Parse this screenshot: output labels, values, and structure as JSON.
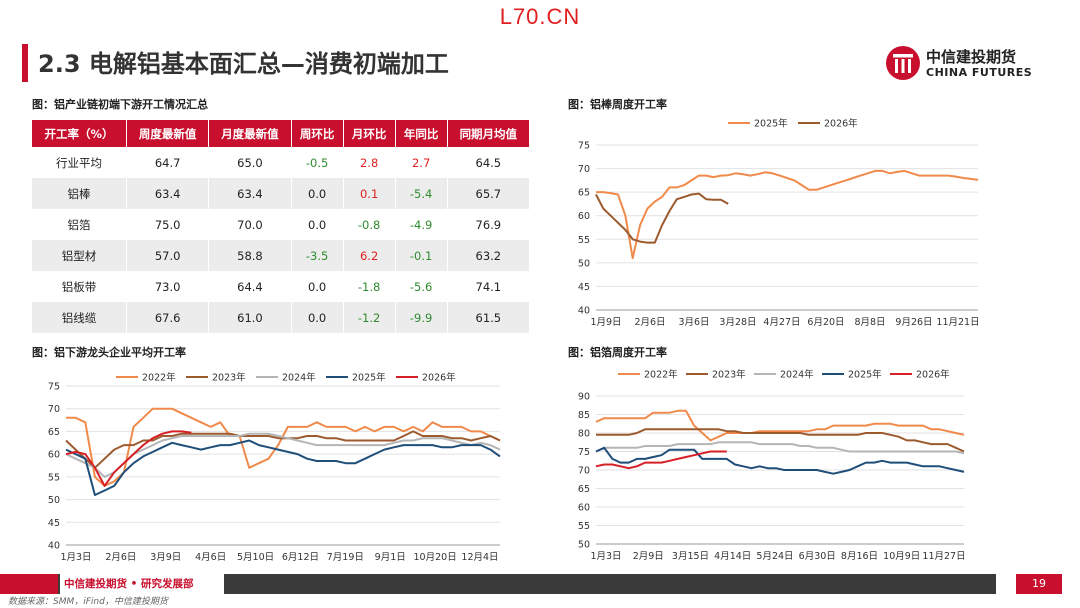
{
  "watermark": "L70.CN",
  "header": {
    "title": "2.3 电解铝基本面汇总—消费初端加工"
  },
  "logo": {
    "cn": "中信建投期货",
    "en": "CHINA FUTURES"
  },
  "table": {
    "caption": "图：铝产业链初端下游开工情况汇总",
    "headers": [
      "开工率（%）",
      "周度最新值",
      "月度最新值",
      "周环比",
      "月环比",
      "年同比",
      "同期月均值"
    ],
    "rows": [
      [
        "行业平均",
        "64.7",
        "65.0",
        "-0.5",
        "2.8",
        "2.7",
        "64.5"
      ],
      [
        "铝棒",
        "63.4",
        "63.4",
        "0.0",
        "0.1",
        "-5.4",
        "65.7"
      ],
      [
        "铝箔",
        "75.0",
        "70.0",
        "0.0",
        "-0.8",
        "-4.9",
        "76.9"
      ],
      [
        "铝型材",
        "57.0",
        "58.8",
        "-3.5",
        "6.2",
        "-0.1",
        "63.2"
      ],
      [
        "铝板带",
        "73.0",
        "64.4",
        "0.0",
        "-1.8",
        "-5.6",
        "74.1"
      ],
      [
        "铝线缆",
        "67.6",
        "61.0",
        "0.0",
        "-1.2",
        "-9.9",
        "61.5"
      ]
    ]
  },
  "colors": {
    "2022": "#f08a4b",
    "2023": "#9c5a2e",
    "2024": "#b5b5b5",
    "2025": "#1f4e79",
    "2026": "#d62027",
    "2025b": "#f08a4b",
    "2026b": "#9c5a2e",
    "accent": "#c8102e"
  },
  "chart_data": [
    {
      "id": "rod",
      "type": "line",
      "title": "图：铝棒周度开工率",
      "ylim": [
        40,
        75
      ],
      "yticks": [
        40,
        45,
        50,
        55,
        60,
        65,
        70,
        75
      ],
      "xticklabels": [
        "1月9日",
        "2月6日",
        "3月6日",
        "3月28日",
        "4月27日",
        "6月20日",
        "8月8日",
        "9月26日",
        "11月21日"
      ],
      "series": [
        {
          "name": "2025年",
          "color": "#f08a4b",
          "values": [
            65,
            65,
            64.8,
            64.5,
            60,
            51,
            58,
            61.5,
            63,
            64,
            66,
            66,
            66.5,
            67.5,
            68.5,
            68.5,
            68.2,
            68.5,
            68.6,
            69,
            68.8,
            68.5,
            68.8,
            69.2,
            69,
            68.5,
            68,
            67.5,
            66.5,
            65.5,
            65.5,
            66,
            66.5,
            67,
            67.5,
            68,
            68.5,
            69,
            69.5,
            69.5,
            69,
            69.3,
            69.5,
            69,
            68.5,
            68.5,
            68.5,
            68.5,
            68.5,
            68.3,
            68,
            67.8,
            67.6
          ]
        },
        {
          "name": "2026年",
          "color": "#9c5a2e",
          "values": [
            64.5,
            61.5,
            60,
            58.5,
            57,
            55,
            54.5,
            54.3,
            54.3,
            58,
            61,
            63.5,
            64,
            64.5,
            64.7,
            63.5,
            63.4,
            63.4,
            62.5
          ]
        }
      ]
    },
    {
      "id": "leading",
      "type": "line",
      "title": "图：铝下游龙头企业平均开工率",
      "ylim": [
        40,
        75
      ],
      "yticks": [
        40,
        45,
        50,
        55,
        60,
        65,
        70,
        75
      ],
      "xticklabels": [
        "1月3日",
        "2月6日",
        "3月9日",
        "4月6日",
        "5月10日",
        "6月12日",
        "7月19日",
        "9月1日",
        "10月20日",
        "12月4日"
      ],
      "series": [
        {
          "name": "2022年",
          "color": "#f08a4b",
          "values": [
            68,
            68,
            67,
            55,
            53,
            54,
            56,
            66,
            68,
            70,
            70,
            70,
            69,
            68,
            67,
            66,
            67,
            64,
            64,
            57,
            58,
            59,
            62,
            66,
            66,
            66,
            67,
            66,
            66,
            66,
            65,
            66,
            65,
            66,
            66,
            65,
            66,
            65,
            67,
            66,
            66,
            66,
            65,
            65,
            64,
            63
          ]
        },
        {
          "name": "2023年",
          "color": "#9c5a2e",
          "values": [
            63,
            61,
            59,
            57,
            59,
            61,
            62,
            62,
            63,
            63,
            64,
            64,
            64.5,
            64.5,
            64.5,
            64.5,
            64.5,
            64.5,
            64,
            64,
            64,
            64,
            63.5,
            63.5,
            63.5,
            64,
            64,
            63.5,
            63.5,
            63,
            63,
            63,
            63,
            63,
            63,
            64,
            65,
            64,
            64,
            64,
            63.5,
            63.5,
            63,
            63.5,
            64,
            63
          ]
        },
        {
          "name": "2024年",
          "color": "#b5b5b5",
          "values": [
            60,
            59,
            58,
            57,
            55,
            56,
            58,
            60,
            61,
            62,
            63,
            63.5,
            64,
            64,
            64,
            64,
            64,
            64,
            64,
            64.5,
            64.5,
            64.5,
            64,
            63.5,
            63,
            62.5,
            62,
            62,
            62,
            62,
            62,
            62,
            62,
            62,
            62.5,
            63,
            63,
            63.5,
            63.5,
            63.5,
            63,
            62.5,
            62,
            62.5,
            62,
            61
          ]
        },
        {
          "name": "2025年",
          "color": "#1f4e79",
          "values": [
            61,
            60,
            59,
            51,
            52,
            53,
            56,
            58,
            59.5,
            60.5,
            61.5,
            62.5,
            62,
            61.5,
            61,
            61.5,
            62,
            62,
            62.5,
            63,
            62,
            61.5,
            61,
            60.5,
            60,
            59,
            58.5,
            58.5,
            58.5,
            58,
            58,
            59,
            60,
            61,
            61.5,
            62,
            62,
            62,
            62,
            61.5,
            61.5,
            62,
            62,
            62,
            61,
            59.5
          ]
        },
        {
          "name": "2026年",
          "color": "#d62027",
          "values": [
            60,
            60.5,
            60,
            57,
            53,
            56,
            58,
            60,
            62,
            63.5,
            64.5,
            65,
            65,
            64.7
          ]
        }
      ]
    },
    {
      "id": "foil",
      "type": "line",
      "title": "图：铝箔周度开工率",
      "ylim": [
        50,
        90
      ],
      "yticks": [
        50,
        55,
        60,
        65,
        70,
        75,
        80,
        85,
        90
      ],
      "xticklabels": [
        "1月3日",
        "2月9日",
        "3月15日",
        "4月14日",
        "5月24日",
        "6月30日",
        "8月16日",
        "10月9日",
        "11月27日"
      ],
      "series": [
        {
          "name": "2022年",
          "color": "#f08a4b",
          "values": [
            83,
            84,
            84,
            84,
            84,
            84,
            84,
            85.5,
            85.5,
            85.5,
            86,
            86,
            82,
            80,
            78,
            79,
            80,
            80,
            80,
            80,
            80.5,
            80.5,
            80.5,
            80.5,
            80.5,
            80.5,
            80.5,
            81,
            81,
            82,
            82,
            82,
            82,
            82,
            82.5,
            82.5,
            82.5,
            82,
            82,
            82,
            82,
            81,
            81,
            80.5,
            80,
            79.5
          ]
        },
        {
          "name": "2023年",
          "color": "#9c5a2e",
          "values": [
            79.5,
            79.5,
            79.5,
            79.5,
            79.5,
            80,
            81,
            81,
            81,
            81,
            81,
            81,
            81,
            81,
            81,
            81,
            80.5,
            80.5,
            80,
            80,
            80,
            80,
            80,
            80,
            80,
            80,
            79.5,
            79.5,
            79.5,
            79.5,
            79.5,
            79.5,
            79.5,
            80,
            80,
            80,
            79.5,
            79,
            78,
            78,
            77.5,
            77,
            77,
            77,
            76,
            75
          ]
        },
        {
          "name": "2024年",
          "color": "#b5b5b5",
          "values": [
            75,
            76,
            76,
            76,
            76,
            76,
            76.5,
            76.5,
            76.5,
            76.5,
            77,
            77,
            77,
            77,
            77,
            77.5,
            77.5,
            77.5,
            77.5,
            77.5,
            77,
            77,
            77,
            77,
            77,
            76.5,
            76.5,
            76,
            76,
            76,
            75.5,
            75,
            75,
            75,
            75,
            75,
            75,
            75,
            75,
            75,
            75,
            75,
            75,
            75,
            75,
            74.5
          ]
        },
        {
          "name": "2025年",
          "color": "#1f4e79",
          "values": [
            75,
            76,
            73,
            72,
            72,
            73,
            73,
            73.5,
            74,
            75.5,
            75.5,
            75.5,
            75.5,
            73,
            73,
            73,
            73,
            71.5,
            71,
            70.5,
            71,
            70.5,
            70.5,
            70,
            70,
            70,
            70,
            70,
            69.5,
            69,
            69.5,
            70,
            71,
            72,
            72,
            72.5,
            72,
            72,
            72,
            71.5,
            71,
            71,
            71,
            70.5,
            70,
            69.5
          ]
        },
        {
          "name": "2026年",
          "color": "#d62027",
          "values": [
            71,
            71.5,
            71.5,
            71,
            70.5,
            71,
            72,
            72,
            72,
            72.5,
            73,
            73.5,
            74,
            74.5,
            75,
            75,
            75
          ]
        }
      ]
    }
  ],
  "footer": {
    "org": "中信建投期货 • 研究发展部",
    "page": "19",
    "source": "数据来源：SMM，iFind，中信建投期货"
  }
}
